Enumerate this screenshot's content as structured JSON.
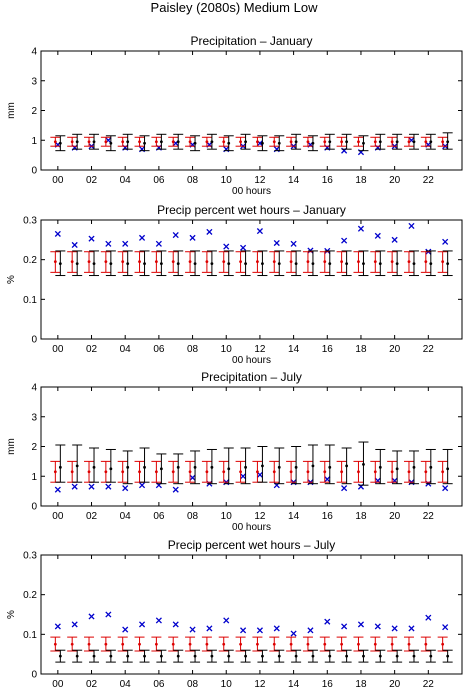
{
  "figure_title": "Paisley (2080s) Medium Low",
  "colors": {
    "observed_marker": "#0000cc",
    "model_a": "#dd0000",
    "model_b": "#000000",
    "axes": "#000000"
  },
  "chart_data": [
    {
      "type": "scatter",
      "title": "Precipitation – January",
      "xlabel": "00 hours",
      "ylabel": "mm",
      "xlim": [
        -1,
        24
      ],
      "ylim": [
        0,
        4
      ],
      "xticks": [
        0,
        2,
        4,
        6,
        8,
        10,
        12,
        14,
        16,
        18,
        20,
        22
      ],
      "xtick_labels": [
        "00",
        "02",
        "04",
        "06",
        "08",
        "10",
        "12",
        "14",
        "16",
        "18",
        "20",
        "22"
      ],
      "yticks": [
        0,
        1,
        2,
        3,
        4
      ],
      "ytick_labels": [
        "0",
        "1",
        "2",
        "3",
        "4"
      ],
      "x": [
        0,
        1,
        2,
        3,
        4,
        5,
        6,
        7,
        8,
        9,
        10,
        11,
        12,
        13,
        14,
        15,
        16,
        17,
        18,
        19,
        20,
        21,
        22,
        23
      ],
      "series": [
        {
          "marker": "x",
          "color": "#0000cc",
          "values": [
            0.85,
            0.75,
            0.8,
            1.0,
            0.75,
            0.7,
            0.75,
            0.9,
            0.85,
            0.85,
            0.7,
            0.8,
            0.9,
            0.7,
            0.8,
            0.85,
            0.75,
            0.65,
            0.6,
            0.75,
            0.8,
            1.0,
            0.85,
            0.8
          ]
        },
        {
          "marker": "dot",
          "color": "#dd0000",
          "values": [
            0.95,
            0.95,
            0.95,
            0.95,
            0.95,
            0.95,
            0.95,
            0.95,
            0.95,
            0.95,
            0.95,
            0.95,
            0.95,
            0.95,
            0.95,
            0.95,
            0.95,
            0.95,
            0.95,
            0.95,
            0.95,
            0.95,
            0.95,
            0.95
          ],
          "low": [
            0.8,
            0.8,
            0.8,
            0.8,
            0.8,
            0.8,
            0.8,
            0.8,
            0.8,
            0.8,
            0.8,
            0.8,
            0.8,
            0.8,
            0.8,
            0.8,
            0.8,
            0.8,
            0.8,
            0.8,
            0.8,
            0.8,
            0.8,
            0.8
          ],
          "high": [
            1.1,
            1.1,
            1.1,
            1.1,
            1.1,
            1.1,
            1.1,
            1.1,
            1.1,
            1.1,
            1.1,
            1.1,
            1.1,
            1.1,
            1.1,
            1.1,
            1.1,
            1.1,
            1.1,
            1.1,
            1.1,
            1.1,
            1.1,
            1.1
          ]
        },
        {
          "marker": "dot",
          "color": "#000000",
          "values": [
            0.9,
            0.95,
            0.95,
            0.9,
            0.95,
            0.9,
            0.95,
            0.95,
            0.9,
            0.95,
            0.9,
            0.95,
            0.9,
            0.9,
            0.95,
            0.9,
            0.95,
            0.95,
            0.9,
            0.95,
            0.95,
            0.95,
            0.95,
            0.95
          ],
          "low": [
            0.65,
            0.7,
            0.7,
            0.65,
            0.7,
            0.65,
            0.7,
            0.7,
            0.65,
            0.7,
            0.65,
            0.7,
            0.65,
            0.65,
            0.7,
            0.65,
            0.7,
            0.7,
            0.65,
            0.7,
            0.7,
            0.7,
            0.7,
            0.7
          ],
          "high": [
            1.15,
            1.2,
            1.2,
            1.15,
            1.2,
            1.15,
            1.2,
            1.2,
            1.15,
            1.2,
            1.15,
            1.2,
            1.15,
            1.15,
            1.2,
            1.15,
            1.2,
            1.2,
            1.15,
            1.2,
            1.2,
            1.2,
            1.2,
            1.25
          ]
        }
      ]
    },
    {
      "type": "scatter",
      "title": "Precip percent wet hours – January",
      "xlabel": "00 hours",
      "ylabel": "%",
      "xlim": [
        -1,
        24
      ],
      "ylim": [
        0,
        0.3
      ],
      "xticks": [
        0,
        2,
        4,
        6,
        8,
        10,
        12,
        14,
        16,
        18,
        20,
        22
      ],
      "xtick_labels": [
        "00",
        "02",
        "04",
        "06",
        "08",
        "10",
        "12",
        "14",
        "16",
        "18",
        "20",
        "22"
      ],
      "yticks": [
        0,
        0.1,
        0.2,
        0.3
      ],
      "ytick_labels": [
        "0",
        "0.1",
        "0.2",
        "0.3"
      ],
      "x": [
        0,
        1,
        2,
        3,
        4,
        5,
        6,
        7,
        8,
        9,
        10,
        11,
        12,
        13,
        14,
        15,
        16,
        17,
        18,
        19,
        20,
        21,
        22,
        23
      ],
      "series": [
        {
          "marker": "x",
          "color": "#0000cc",
          "values": [
            0.265,
            0.237,
            0.253,
            0.24,
            0.24,
            0.255,
            0.24,
            0.262,
            0.255,
            0.27,
            0.233,
            0.23,
            0.272,
            0.242,
            0.24,
            0.223,
            0.222,
            0.248,
            0.278,
            0.26,
            0.25,
            0.285,
            0.22,
            0.245
          ]
        },
        {
          "marker": "dot",
          "color": "#dd0000",
          "values": [
            0.195,
            0.195,
            0.195,
            0.195,
            0.195,
            0.195,
            0.195,
            0.195,
            0.195,
            0.195,
            0.195,
            0.195,
            0.195,
            0.195,
            0.195,
            0.195,
            0.195,
            0.195,
            0.195,
            0.195,
            0.195,
            0.195,
            0.195,
            0.195
          ],
          "low": [
            0.168,
            0.168,
            0.168,
            0.168,
            0.168,
            0.168,
            0.168,
            0.168,
            0.168,
            0.168,
            0.168,
            0.168,
            0.168,
            0.168,
            0.168,
            0.168,
            0.168,
            0.168,
            0.168,
            0.168,
            0.168,
            0.168,
            0.168,
            0.168
          ],
          "high": [
            0.22,
            0.22,
            0.22,
            0.22,
            0.22,
            0.22,
            0.22,
            0.22,
            0.22,
            0.22,
            0.22,
            0.22,
            0.22,
            0.22,
            0.22,
            0.22,
            0.22,
            0.22,
            0.22,
            0.22,
            0.22,
            0.22,
            0.22,
            0.22
          ]
        },
        {
          "marker": "dot",
          "color": "#000000",
          "values": [
            0.19,
            0.19,
            0.19,
            0.19,
            0.19,
            0.19,
            0.19,
            0.19,
            0.19,
            0.19,
            0.19,
            0.19,
            0.19,
            0.19,
            0.19,
            0.19,
            0.19,
            0.19,
            0.19,
            0.19,
            0.19,
            0.19,
            0.19,
            0.19
          ],
          "low": [
            0.16,
            0.16,
            0.16,
            0.16,
            0.16,
            0.16,
            0.16,
            0.16,
            0.16,
            0.16,
            0.16,
            0.16,
            0.16,
            0.16,
            0.16,
            0.16,
            0.16,
            0.16,
            0.16,
            0.16,
            0.16,
            0.16,
            0.16,
            0.16
          ],
          "high": [
            0.222,
            0.222,
            0.222,
            0.222,
            0.222,
            0.222,
            0.222,
            0.222,
            0.222,
            0.222,
            0.222,
            0.222,
            0.222,
            0.222,
            0.222,
            0.222,
            0.222,
            0.222,
            0.222,
            0.222,
            0.222,
            0.222,
            0.222,
            0.222
          ]
        }
      ]
    },
    {
      "type": "scatter",
      "title": "Precipitation – July",
      "xlabel": "00 hours",
      "ylabel": "mm",
      "xlim": [
        -1,
        24
      ],
      "ylim": [
        0,
        4
      ],
      "xticks": [
        0,
        2,
        4,
        6,
        8,
        10,
        12,
        14,
        16,
        18,
        20,
        22
      ],
      "xtick_labels": [
        "00",
        "02",
        "04",
        "06",
        "08",
        "10",
        "12",
        "14",
        "16",
        "18",
        "20",
        "22"
      ],
      "yticks": [
        0,
        1,
        2,
        3,
        4
      ],
      "ytick_labels": [
        "0",
        "1",
        "2",
        "3",
        "4"
      ],
      "x": [
        0,
        1,
        2,
        3,
        4,
        5,
        6,
        7,
        8,
        9,
        10,
        11,
        12,
        13,
        14,
        15,
        16,
        17,
        18,
        19,
        20,
        21,
        22,
        23
      ],
      "series": [
        {
          "marker": "x",
          "color": "#0000cc",
          "values": [
            0.55,
            0.65,
            0.65,
            0.65,
            0.6,
            0.7,
            0.7,
            0.55,
            0.95,
            0.75,
            0.8,
            1.0,
            1.05,
            0.7,
            0.8,
            0.8,
            0.9,
            0.6,
            0.65,
            0.85,
            0.85,
            0.8,
            0.75,
            0.6
          ]
        },
        {
          "marker": "dot",
          "color": "#dd0000",
          "values": [
            1.15,
            1.15,
            1.15,
            1.15,
            1.15,
            1.15,
            1.15,
            1.15,
            1.15,
            1.15,
            1.15,
            1.15,
            1.15,
            1.15,
            1.15,
            1.15,
            1.15,
            1.15,
            1.15,
            1.15,
            1.15,
            1.15,
            1.15,
            1.15
          ],
          "low": [
            0.8,
            0.8,
            0.8,
            0.8,
            0.8,
            0.8,
            0.8,
            0.8,
            0.8,
            0.8,
            0.8,
            0.8,
            0.8,
            0.8,
            0.8,
            0.8,
            0.8,
            0.8,
            0.8,
            0.8,
            0.8,
            0.8,
            0.8,
            0.8
          ],
          "high": [
            1.5,
            1.5,
            1.5,
            1.5,
            1.5,
            1.5,
            1.5,
            1.5,
            1.5,
            1.5,
            1.5,
            1.5,
            1.5,
            1.5,
            1.5,
            1.5,
            1.5,
            1.5,
            1.5,
            1.5,
            1.5,
            1.5,
            1.5,
            1.5
          ]
        },
        {
          "marker": "dot",
          "color": "#000000",
          "values": [
            1.3,
            1.35,
            1.3,
            1.25,
            1.3,
            1.3,
            1.25,
            1.3,
            1.3,
            1.3,
            1.25,
            1.3,
            1.35,
            1.3,
            1.3,
            1.35,
            1.3,
            1.35,
            1.4,
            1.3,
            1.25,
            1.3,
            1.3,
            1.25
          ],
          "low": [
            0.8,
            0.8,
            0.8,
            0.8,
            0.75,
            0.8,
            0.75,
            0.75,
            0.75,
            0.75,
            0.75,
            0.75,
            0.8,
            0.75,
            0.75,
            0.75,
            0.75,
            0.75,
            0.7,
            0.75,
            0.75,
            0.75,
            0.75,
            0.75
          ],
          "high": [
            2.05,
            2.05,
            1.95,
            1.9,
            1.85,
            1.95,
            1.75,
            1.75,
            1.85,
            1.9,
            1.95,
            1.95,
            2.0,
            1.95,
            2.0,
            2.05,
            2.05,
            1.95,
            2.15,
            1.9,
            1.85,
            1.85,
            1.9,
            1.9
          ]
        }
      ]
    },
    {
      "type": "scatter",
      "title": "Precip percent wet hours – July",
      "xlabel": "00 hours",
      "ylabel": "%",
      "xlim": [
        -1,
        24
      ],
      "ylim": [
        0,
        0.3
      ],
      "xticks": [
        0,
        2,
        4,
        6,
        8,
        10,
        12,
        14,
        16,
        18,
        20,
        22
      ],
      "xtick_labels": [
        "00",
        "02",
        "04",
        "06",
        "08",
        "10",
        "12",
        "14",
        "16",
        "18",
        "20",
        "22"
      ],
      "yticks": [
        0,
        0.1,
        0.2,
        0.3
      ],
      "ytick_labels": [
        "0",
        "0.1",
        "0.2",
        "0.3"
      ],
      "x": [
        0,
        1,
        2,
        3,
        4,
        5,
        6,
        7,
        8,
        9,
        10,
        11,
        12,
        13,
        14,
        15,
        16,
        17,
        18,
        19,
        20,
        21,
        22,
        23
      ],
      "series": [
        {
          "marker": "x",
          "color": "#0000cc",
          "values": [
            0.12,
            0.125,
            0.145,
            0.15,
            0.112,
            0.125,
            0.135,
            0.125,
            0.112,
            0.115,
            0.135,
            0.11,
            0.11,
            0.115,
            0.102,
            0.11,
            0.132,
            0.12,
            0.125,
            0.12,
            0.115,
            0.115,
            0.142,
            0.118
          ]
        },
        {
          "marker": "dot",
          "color": "#dd0000",
          "values": [
            0.075,
            0.075,
            0.075,
            0.075,
            0.075,
            0.075,
            0.075,
            0.075,
            0.075,
            0.075,
            0.075,
            0.075,
            0.075,
            0.075,
            0.075,
            0.075,
            0.075,
            0.075,
            0.075,
            0.075,
            0.075,
            0.075,
            0.075,
            0.075
          ],
          "low": [
            0.058,
            0.058,
            0.058,
            0.058,
            0.058,
            0.058,
            0.058,
            0.058,
            0.058,
            0.058,
            0.058,
            0.058,
            0.058,
            0.058,
            0.058,
            0.058,
            0.058,
            0.058,
            0.058,
            0.058,
            0.058,
            0.058,
            0.058,
            0.058
          ],
          "high": [
            0.093,
            0.093,
            0.093,
            0.093,
            0.093,
            0.093,
            0.093,
            0.093,
            0.093,
            0.093,
            0.093,
            0.093,
            0.093,
            0.093,
            0.093,
            0.093,
            0.093,
            0.093,
            0.093,
            0.093,
            0.093,
            0.093,
            0.093,
            0.093
          ]
        },
        {
          "marker": "dot",
          "color": "#000000",
          "values": [
            0.045,
            0.045,
            0.045,
            0.045,
            0.045,
            0.045,
            0.045,
            0.045,
            0.045,
            0.045,
            0.045,
            0.045,
            0.045,
            0.045,
            0.045,
            0.045,
            0.045,
            0.045,
            0.045,
            0.045,
            0.045,
            0.045,
            0.045,
            0.045
          ],
          "low": [
            0.03,
            0.03,
            0.03,
            0.03,
            0.03,
            0.03,
            0.03,
            0.03,
            0.03,
            0.03,
            0.03,
            0.03,
            0.03,
            0.03,
            0.03,
            0.03,
            0.03,
            0.03,
            0.03,
            0.03,
            0.03,
            0.03,
            0.03,
            0.03
          ],
          "high": [
            0.06,
            0.06,
            0.06,
            0.06,
            0.06,
            0.06,
            0.06,
            0.06,
            0.06,
            0.06,
            0.06,
            0.06,
            0.06,
            0.06,
            0.06,
            0.06,
            0.06,
            0.06,
            0.06,
            0.06,
            0.06,
            0.06,
            0.06,
            0.06
          ]
        }
      ]
    }
  ]
}
